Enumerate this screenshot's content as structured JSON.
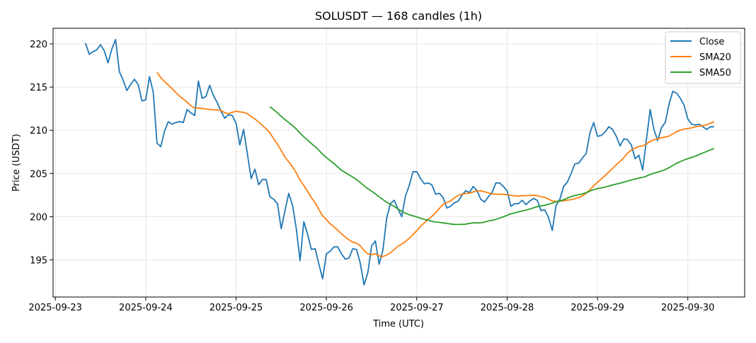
{
  "chart_data": {
    "type": "line",
    "title": "SOLUSDT — 168 candles (1h)",
    "xlabel": "Time (UTC)",
    "ylabel": "Price (USDT)",
    "start_time": "2025-09-23 08:00",
    "interval_hours": 1,
    "x_ticks": [
      "2025-09-23",
      "2025-09-24",
      "2025-09-25",
      "2025-09-26",
      "2025-09-27",
      "2025-09-28",
      "2025-09-29",
      "2025-09-30"
    ],
    "y_ticks": [
      195,
      200,
      205,
      210,
      215,
      220
    ],
    "ylim": [
      190.7,
      221.8
    ],
    "xlim_hours_from_first_tick": [
      -0.6,
      183.1
    ],
    "grid": true,
    "legend_position": "top-right",
    "series": [
      {
        "name": "Close",
        "color": "#1f77b4",
        "values": [
          220.1,
          218.8,
          219.1,
          219.3,
          219.9,
          219.2,
          217.8,
          219.4,
          220.5,
          216.8,
          215.8,
          214.6,
          215.3,
          215.9,
          215.3,
          213.4,
          213.5,
          216.2,
          214.4,
          208.5,
          208.1,
          209.9,
          211.0,
          210.7,
          210.9,
          211.0,
          210.9,
          212.4,
          212.0,
          211.7,
          215.7,
          213.7,
          213.9,
          215.2,
          214.0,
          213.2,
          212.2,
          211.4,
          211.8,
          211.7,
          210.8,
          208.3,
          210.1,
          207.3,
          204.4,
          205.5,
          203.7,
          204.3,
          204.3,
          202.3,
          202.0,
          201.5,
          198.6,
          200.7,
          202.7,
          201.3,
          198.6,
          194.9,
          199.4,
          198.0,
          196.2,
          196.3,
          194.5,
          192.8,
          195.7,
          196.0,
          196.5,
          196.5,
          195.7,
          195.1,
          195.2,
          196.3,
          196.2,
          194.6,
          192.1,
          193.5,
          196.6,
          197.2,
          194.5,
          196.1,
          199.8,
          201.5,
          201.9,
          200.9,
          200.0,
          202.4,
          203.6,
          205.2,
          205.2,
          204.4,
          203.8,
          203.9,
          203.7,
          202.6,
          202.7,
          202.2,
          201.0,
          201.2,
          201.6,
          201.8,
          202.5,
          203.0,
          202.8,
          203.5,
          203.0,
          202.0,
          201.7,
          202.3,
          202.8,
          203.9,
          203.9,
          203.5,
          203.0,
          201.2,
          201.5,
          201.5,
          201.9,
          201.4,
          201.8,
          202.1,
          201.9,
          200.7,
          200.8,
          199.9,
          198.4,
          201.3,
          202.0,
          203.5,
          204.0,
          205.0,
          206.1,
          206.2,
          206.8,
          207.3,
          209.7,
          210.9,
          209.3,
          209.4,
          209.8,
          210.4,
          210.1,
          209.3,
          208.2,
          209.0,
          208.9,
          208.3,
          206.7,
          207.1,
          205.4,
          208.9,
          212.4,
          210.1,
          208.8,
          210.3,
          210.9,
          213.0,
          214.5,
          214.3,
          213.7,
          212.9,
          211.3,
          210.7,
          210.6,
          210.7,
          210.4,
          210.1,
          210.4,
          210.4
        ]
      },
      {
        "name": "SMA20",
        "color": "#ff7f0e",
        "window": 20
      },
      {
        "name": "SMA50",
        "color": "#2ca02c",
        "window": 50
      }
    ]
  }
}
